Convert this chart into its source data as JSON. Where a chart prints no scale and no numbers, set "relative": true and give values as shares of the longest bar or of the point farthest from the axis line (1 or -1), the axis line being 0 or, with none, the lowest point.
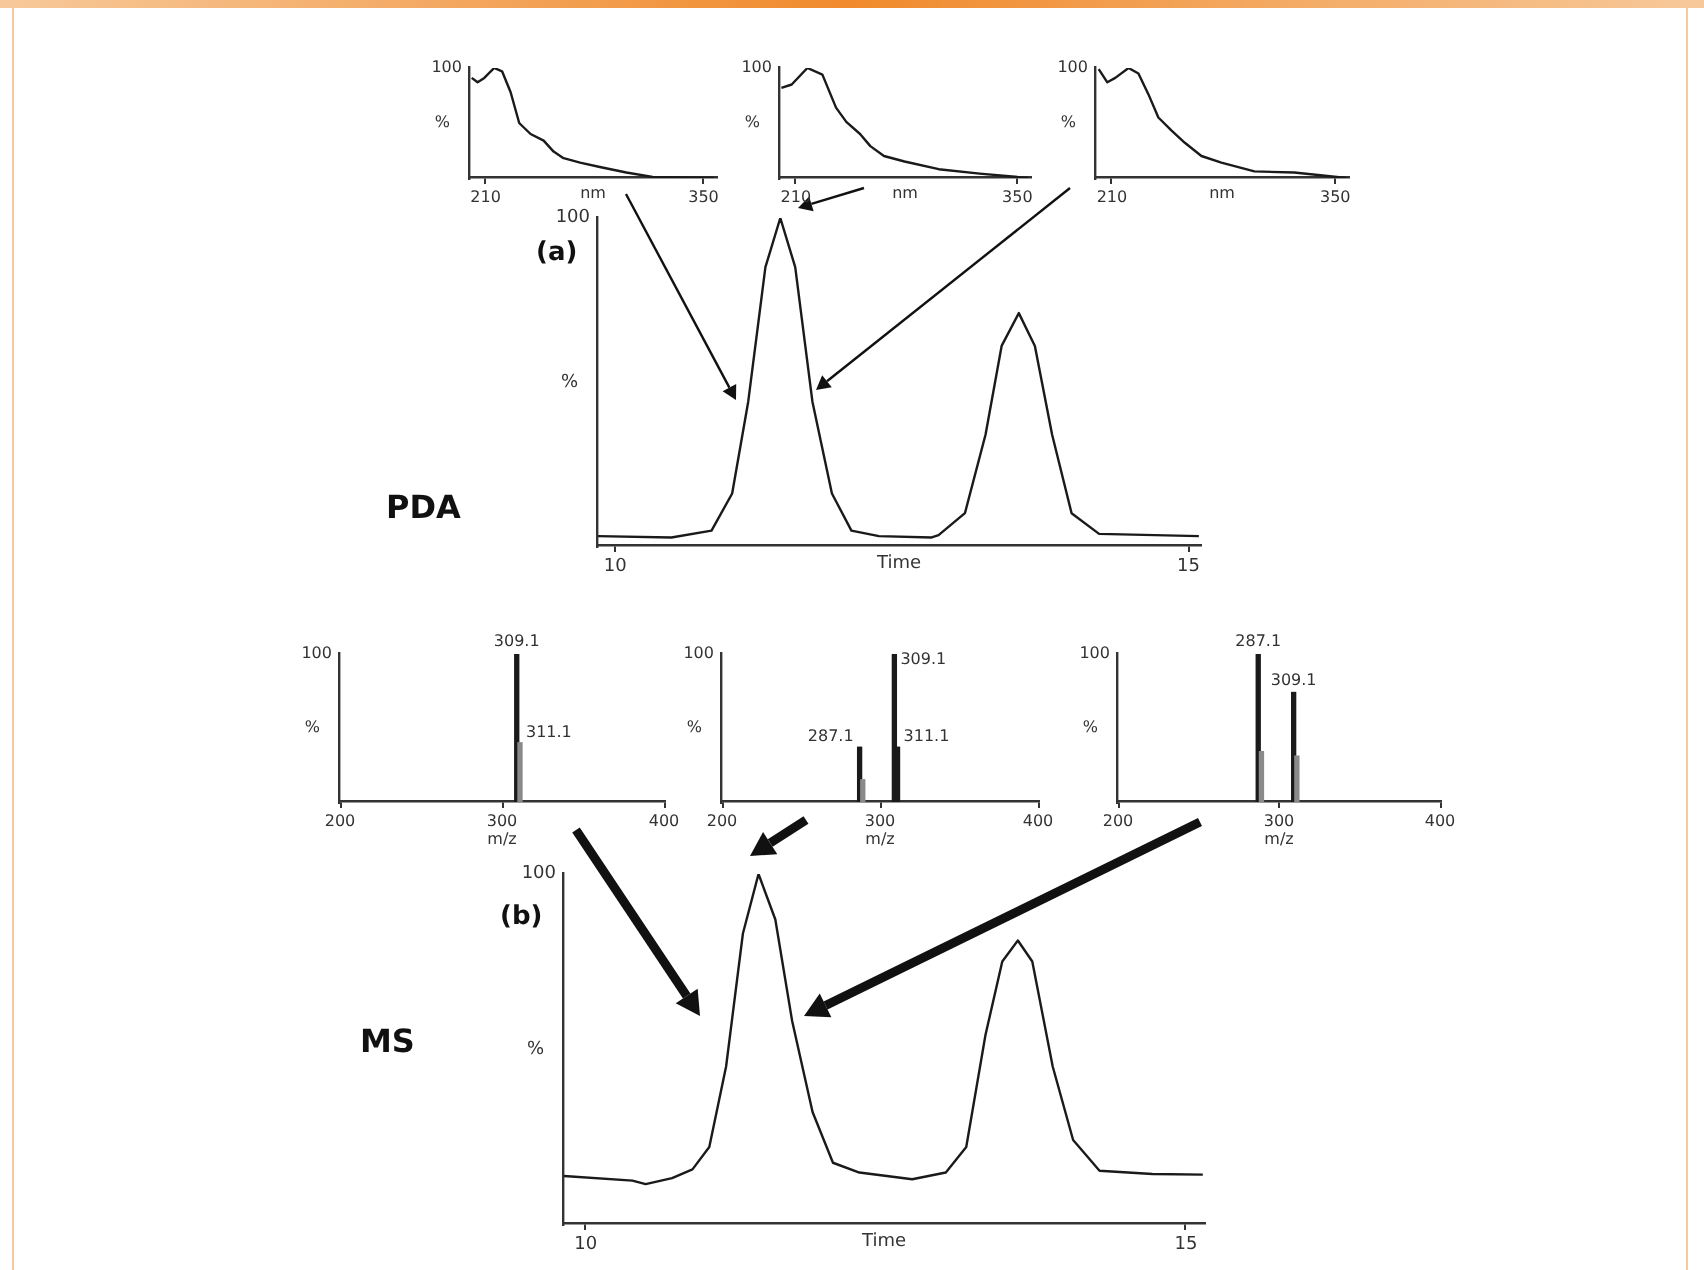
{
  "chart_data": [
    {
      "type": "line",
      "relative": true,
      "x": [
        201.1,
        204.9,
        209.2,
        215.5,
        220.6,
        226.1,
        231.6,
        238.9,
        247.3,
        253.7,
        260.1,
        270.7,
        283.4,
        300.4,
        317.3,
        356.8
      ],
      "values": [
        0.91,
        0.87,
        0.91,
        1,
        0.97,
        0.78,
        0.5,
        0.4,
        0.34,
        0.24,
        0.18,
        0.14,
        0.1,
        0.05,
        0.01,
        0
      ],
      "color": "#1a1a1a",
      "xlim": [
        200,
        358
      ],
      "xticks": [
        210,
        350
      ],
      "xlabel": "nm",
      "ylabel": "%",
      "annotations": [
        "100"
      ]
    },
    {
      "type": "line",
      "relative": true,
      "x": [
        200.9,
        207.4,
        217.3,
        226.8,
        235.4,
        241.9,
        250.6,
        257.1,
        265.7,
        278.7,
        300.3,
        326.2,
        357
      ],
      "values": [
        0.82,
        0.85,
        1,
        0.94,
        0.64,
        0.51,
        0.4,
        0.29,
        0.2,
        0.15,
        0.08,
        0.04,
        0
      ],
      "color": "#1a1a1a",
      "xlim": [
        200,
        358
      ],
      "xticks": [
        210,
        350
      ],
      "xlabel": "nm",
      "ylabel": "%",
      "annotations": [
        "100"
      ]
    },
    {
      "type": "line",
      "relative": true,
      "x": [
        201.7,
        207.1,
        212.1,
        220.4,
        226.6,
        232.9,
        239.1,
        247.4,
        255.7,
        266.1,
        278.6,
        299.3,
        324.3,
        357
      ],
      "values": [
        0.99,
        0.87,
        0.91,
        1,
        0.95,
        0.76,
        0.55,
        0.43,
        0.32,
        0.2,
        0.14,
        0.06,
        0.05,
        0
      ],
      "color": "#1a1a1a",
      "xlim": [
        200,
        358
      ],
      "xticks": [
        210,
        350
      ],
      "xlabel": "nm",
      "ylabel": "%",
      "annotations": [
        "100"
      ]
    },
    {
      "type": "line",
      "relative": true,
      "x": [
        9.85,
        10.49,
        10.84,
        11.02,
        11.16,
        11.31,
        11.44,
        11.57,
        11.72,
        11.89,
        12.06,
        12.3,
        12.76,
        12.82,
        13.05,
        13.23,
        13.37,
        13.52,
        13.66,
        13.81,
        13.98,
        14.22,
        15.09
      ],
      "values": [
        0.03,
        0.026,
        0.047,
        0.16,
        0.44,
        0.85,
        1,
        0.85,
        0.44,
        0.16,
        0.047,
        0.03,
        0.026,
        0.033,
        0.1,
        0.34,
        0.61,
        0.71,
        0.61,
        0.34,
        0.1,
        0.037,
        0.03
      ],
      "color": "#1a1a1a",
      "xlim": [
        9.85,
        15.1
      ],
      "xticks": [
        10,
        15
      ],
      "xlabel": "Time",
      "ylabel": "%",
      "annotations": [
        "100",
        "(a)",
        "PDA"
      ]
    },
    {
      "type": "bar",
      "relative": true,
      "x": [
        309.1,
        311.1
      ],
      "values": [
        1,
        0.4
      ],
      "colors": [
        "#1a1a1a",
        "#8a8a8a"
      ],
      "xlim": [
        200,
        400
      ],
      "xticks": [
        200,
        300,
        400
      ],
      "xlabel": "m/z",
      "ylabel": "%",
      "annotations": [
        "100",
        {
          "text": "309.1",
          "x": 309.1,
          "y": 1
        },
        {
          "text": "311.1",
          "x": 311.1,
          "y": 0.4
        }
      ]
    },
    {
      "type": "bar",
      "relative": true,
      "x": [
        287.1,
        289.1,
        309.1,
        311.1
      ],
      "values": [
        0.37,
        0.15,
        1,
        0.37
      ],
      "colors": [
        "#1a1a1a",
        "#8a8a8a",
        "#1a1a1a",
        "#1a1a1a"
      ],
      "xlim": [
        200,
        400
      ],
      "xticks": [
        200,
        300,
        400
      ],
      "xlabel": "m/z",
      "ylabel": "%",
      "annotations": [
        "100",
        {
          "text": "287.1",
          "x": 287.1,
          "y": 0.37
        },
        {
          "text": "309.1",
          "x": 309.1,
          "y": 1
        },
        {
          "text": "311.1",
          "x": 311.1,
          "y": 0.37
        }
      ]
    },
    {
      "type": "bar",
      "relative": true,
      "x": [
        287.1,
        289.1,
        309.1,
        311.1
      ],
      "values": [
        1,
        0.34,
        0.74,
        0.31
      ],
      "colors": [
        "#1a1a1a",
        "#8a8a8a",
        "#1a1a1a",
        "#8a8a8a"
      ],
      "xlim": [
        200,
        400
      ],
      "xticks": [
        200,
        300,
        400
      ],
      "xlabel": "m/z",
      "ylabel": "%",
      "annotations": [
        "100",
        {
          "text": "287.1",
          "x": 287.1,
          "y": 1
        },
        {
          "text": "309.1",
          "x": 309.1,
          "y": 0.74
        }
      ]
    },
    {
      "type": "line",
      "relative": true,
      "x": [
        9.82,
        10.39,
        10.5,
        10.72,
        10.89,
        11.03,
        11.17,
        11.31,
        11.44,
        11.58,
        11.72,
        11.89,
        12.06,
        12.28,
        12.72,
        13.0,
        13.17,
        13.33,
        13.47,
        13.6,
        13.72,
        13.89,
        14.06,
        14.28,
        14.72,
        15.14
      ],
      "values": [
        0.137,
        0.124,
        0.114,
        0.131,
        0.156,
        0.22,
        0.45,
        0.83,
        1,
        0.87,
        0.58,
        0.32,
        0.175,
        0.147,
        0.128,
        0.147,
        0.22,
        0.54,
        0.75,
        0.81,
        0.75,
        0.45,
        0.24,
        0.152,
        0.143,
        0.141
      ],
      "color": "#1a1a1a",
      "xlim": [
        9.82,
        15.15
      ],
      "xticks": [
        10,
        15
      ],
      "xlabel": "Time",
      "ylabel": "%",
      "annotations": [
        "100",
        "(b)",
        "MS"
      ]
    }
  ]
}
